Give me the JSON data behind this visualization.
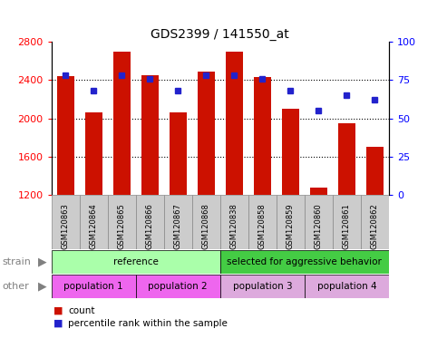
{
  "title": "GDS2399 / 141550_at",
  "samples": [
    "GSM120863",
    "GSM120864",
    "GSM120865",
    "GSM120866",
    "GSM120867",
    "GSM120868",
    "GSM120838",
    "GSM120858",
    "GSM120859",
    "GSM120860",
    "GSM120861",
    "GSM120862"
  ],
  "counts": [
    2440,
    2060,
    2700,
    2450,
    2060,
    2490,
    2700,
    2430,
    2100,
    1280,
    1950,
    1700
  ],
  "percentiles": [
    78,
    68,
    78,
    76,
    68,
    78,
    78,
    76,
    68,
    55,
    65,
    62
  ],
  "ylim_left": [
    1200,
    2800
  ],
  "ylim_right": [
    0,
    100
  ],
  "yticks_left": [
    1200,
    1600,
    2000,
    2400,
    2800
  ],
  "yticks_right": [
    0,
    25,
    50,
    75,
    100
  ],
  "bar_color": "#cc1100",
  "dot_color": "#2222cc",
  "strain_groups": [
    {
      "label": "reference",
      "color": "#aaffaa",
      "start": 0,
      "end": 6
    },
    {
      "label": "selected for aggressive behavior",
      "color": "#44cc44",
      "start": 6,
      "end": 12
    }
  ],
  "other_groups": [
    {
      "label": "population 1",
      "color": "#ee66ee",
      "start": 0,
      "end": 3
    },
    {
      "label": "population 2",
      "color": "#ee66ee",
      "start": 3,
      "end": 6
    },
    {
      "label": "population 3",
      "color": "#ddaadd",
      "start": 6,
      "end": 9
    },
    {
      "label": "population 4",
      "color": "#ddaadd",
      "start": 9,
      "end": 12
    }
  ],
  "strain_label": "strain",
  "other_label": "other",
  "legend_count_label": "count",
  "legend_pct_label": "percentile rank within the sample",
  "background_color": "#ffffff",
  "xlabel_bg": "#cccccc",
  "xlabel_border": "#888888"
}
